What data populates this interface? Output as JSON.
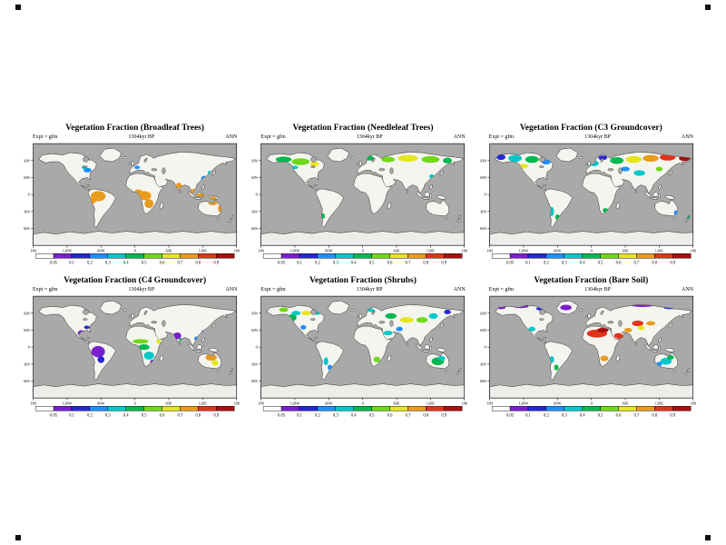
{
  "page": {
    "background": "#ffffff"
  },
  "map_colors": {
    "ocean": "#a9a9a9",
    "land": "#f5f5f0",
    "coast": "#000000",
    "antarctica": "#ededea"
  },
  "axes": {
    "x_tick_lons": [
      -180,
      -120,
      -60,
      0,
      60,
      120,
      180
    ],
    "x_tick_labels": [
      "180",
      "120W",
      "60W",
      "0",
      "60E",
      "120E",
      "180"
    ],
    "y_tick_lats": [
      60,
      30,
      0,
      -30,
      -60
    ],
    "y_tick_labels": [
      "60N",
      "30N",
      "0",
      "30S",
      "60S"
    ]
  },
  "colorbar": {
    "ticks": [
      "0.05",
      "0.1",
      "0.2",
      "0.3",
      "0.4",
      "0.5",
      "0.6",
      "0.7",
      "0.8",
      "0.9"
    ],
    "colors": [
      "#ffffff",
      "#7a1fd0",
      "#2626d8",
      "#1e90ff",
      "#00c8c8",
      "#00b850",
      "#70d818",
      "#e6e61e",
      "#e89c1e",
      "#e0341a",
      "#a80f0f"
    ]
  },
  "regions_format": [
    "lon",
    "lat",
    "rlon",
    "rlat",
    "value"
  ],
  "chart_data": [
    {
      "type": "heatmap",
      "projection": "equirectangular",
      "title": "Vegetation Fraction (Broadleaf Trees)",
      "expt_label": "Expt = gfm",
      "date_label": "1304kyr BP",
      "season_label": "ANN",
      "regions": [
        [
          -84,
          43,
          7,
          4,
          0.25
        ],
        [
          -90,
          48,
          4,
          3,
          0.35
        ],
        [
          -65,
          -3,
          13,
          9,
          0.75
        ],
        [
          -74,
          -10,
          5,
          6,
          0.75
        ],
        [
          16,
          -2,
          13,
          8,
          0.75
        ],
        [
          25,
          -16,
          8,
          8,
          0.75
        ],
        [
          6,
          6,
          6,
          3,
          0.75
        ],
        [
          78,
          16,
          5,
          5,
          0.75
        ],
        [
          105,
          5,
          8,
          5,
          0.75
        ],
        [
          115,
          -2,
          8,
          4,
          0.75
        ],
        [
          138,
          -6,
          6,
          3,
          0.75
        ],
        [
          138,
          -15,
          8,
          4,
          0.75
        ],
        [
          150,
          -25,
          3,
          6,
          0.75
        ],
        [
          122,
          28,
          5,
          5,
          0.25
        ],
        [
          4,
          48,
          5,
          3,
          0.25
        ],
        [
          132,
          38,
          3,
          4,
          0.35
        ]
      ]
    },
    {
      "type": "heatmap",
      "projection": "equirectangular",
      "title": "Vegetation Fraction (Needleleaf Trees)",
      "expt_label": "Expt = gfm",
      "date_label": "1304kyr BP",
      "season_label": "ANN",
      "regions": [
        [
          -140,
          62,
          14,
          5,
          0.45
        ],
        [
          -110,
          58,
          16,
          6,
          0.55
        ],
        [
          -85,
          54,
          8,
          4,
          0.65
        ],
        [
          -120,
          48,
          6,
          3,
          0.35
        ],
        [
          13,
          64,
          7,
          4,
          0.45
        ],
        [
          45,
          62,
          12,
          5,
          0.55
        ],
        [
          80,
          64,
          18,
          6,
          0.65
        ],
        [
          120,
          62,
          16,
          6,
          0.55
        ],
        [
          150,
          60,
          8,
          5,
          0.45
        ],
        [
          122,
          32,
          4,
          4,
          0.35
        ],
        [
          -70,
          -38,
          3,
          5,
          0.45
        ]
      ]
    },
    {
      "type": "heatmap",
      "projection": "equirectangular",
      "title": "Vegetation Fraction (C3 Groundcover)",
      "expt_label": "Expt = gfm",
      "date_label": "1304kyr BP",
      "season_label": "ANN",
      "regions": [
        [
          -160,
          66,
          8,
          5,
          0.15
        ],
        [
          -135,
          64,
          12,
          6,
          0.35
        ],
        [
          -105,
          62,
          12,
          6,
          0.45
        ],
        [
          -80,
          58,
          8,
          5,
          0.25
        ],
        [
          -120,
          50,
          8,
          4,
          0.65
        ],
        [
          5,
          55,
          8,
          5,
          0.35
        ],
        [
          20,
          65,
          8,
          4,
          0.15
        ],
        [
          45,
          60,
          12,
          6,
          0.45
        ],
        [
          75,
          62,
          14,
          6,
          0.65
        ],
        [
          105,
          64,
          14,
          6,
          0.75
        ],
        [
          135,
          66,
          14,
          6,
          0.85
        ],
        [
          165,
          64,
          10,
          5,
          0.95
        ],
        [
          85,
          38,
          10,
          5,
          0.35
        ],
        [
          60,
          45,
          8,
          4,
          0.25
        ],
        [
          120,
          45,
          6,
          4,
          0.55
        ],
        [
          -70,
          -30,
          4,
          8,
          0.35
        ],
        [
          -60,
          -40,
          4,
          5,
          0.45
        ],
        [
          25,
          -28,
          5,
          4,
          0.45
        ],
        [
          150,
          -32,
          4,
          4,
          0.25
        ],
        [
          172,
          -42,
          3,
          4,
          0.45
        ]
      ]
    },
    {
      "type": "heatmap",
      "projection": "equirectangular",
      "title": "Vegetation Fraction (C4 Groundcover)",
      "expt_label": "Expt = gfm",
      "date_label": "1304kyr BP",
      "season_label": "ANN",
      "regions": [
        [
          -65,
          -8,
          12,
          10,
          0.08
        ],
        [
          -60,
          -22,
          6,
          6,
          0.15
        ],
        [
          -95,
          25,
          6,
          5,
          0.08
        ],
        [
          -85,
          35,
          5,
          3,
          0.15
        ],
        [
          10,
          10,
          14,
          4,
          0.55
        ],
        [
          16,
          0,
          10,
          5,
          0.45
        ],
        [
          25,
          -15,
          9,
          7,
          0.35
        ],
        [
          32,
          -26,
          5,
          4,
          0.08
        ],
        [
          42,
          10,
          4,
          4,
          0.65
        ],
        [
          75,
          20,
          7,
          6,
          0.08
        ],
        [
          82,
          12,
          4,
          4,
          0.45
        ],
        [
          110,
          15,
          5,
          4,
          0.25
        ],
        [
          135,
          -18,
          10,
          6,
          0.75
        ],
        [
          142,
          -28,
          6,
          5,
          0.65
        ],
        [
          122,
          27,
          4,
          3,
          0.08
        ]
      ]
    },
    {
      "type": "heatmap",
      "projection": "equirectangular",
      "title": "Vegetation Fraction (Shrubs)",
      "expt_label": "Expt = gfm",
      "date_label": "1304kyr BP",
      "season_label": "ANN",
      "regions": [
        [
          -125,
          52,
          8,
          6,
          0.45
        ],
        [
          -118,
          60,
          8,
          4,
          0.35
        ],
        [
          -140,
          66,
          8,
          4,
          0.55
        ],
        [
          -100,
          60,
          8,
          4,
          0.65
        ],
        [
          -80,
          60,
          5,
          3,
          0.35
        ],
        [
          -105,
          35,
          5,
          4,
          0.25
        ],
        [
          15,
          65,
          6,
          3,
          0.35
        ],
        [
          50,
          55,
          10,
          5,
          0.45
        ],
        [
          78,
          48,
          12,
          5,
          0.65
        ],
        [
          105,
          48,
          10,
          5,
          0.55
        ],
        [
          125,
          55,
          8,
          5,
          0.35
        ],
        [
          150,
          62,
          6,
          4,
          0.15
        ],
        [
          45,
          25,
          8,
          4,
          0.35
        ],
        [
          65,
          32,
          6,
          4,
          0.25
        ],
        [
          133,
          -25,
          11,
          7,
          0.45
        ],
        [
          140,
          -20,
          6,
          4,
          0.35
        ],
        [
          -65,
          -25,
          4,
          7,
          0.35
        ],
        [
          -58,
          -36,
          4,
          5,
          0.25
        ],
        [
          25,
          -22,
          6,
          5,
          0.55
        ]
      ]
    },
    {
      "type": "heatmap",
      "projection": "equirectangular",
      "title": "Vegetation Fraction (Bare Soil)",
      "expt_label": "Expt = gfm",
      "date_label": "1304kyr BP",
      "season_label": "ANN",
      "regions": [
        [
          10,
          24,
          18,
          7,
          0.85
        ],
        [
          20,
          30,
          10,
          4,
          0.95
        ],
        [
          48,
          20,
          8,
          5,
          0.85
        ],
        [
          65,
          30,
          7,
          4,
          0.75
        ],
        [
          82,
          42,
          10,
          5,
          0.85
        ],
        [
          105,
          42,
          8,
          4,
          0.75
        ],
        [
          88,
          34,
          6,
          4,
          0.65
        ],
        [
          -160,
          70,
          8,
          3,
          0.08
        ],
        [
          -125,
          72,
          14,
          3,
          0.08
        ],
        [
          -90,
          68,
          8,
          3,
          0.15
        ],
        [
          -45,
          70,
          10,
          5,
          0.08
        ],
        [
          90,
          74,
          20,
          3,
          0.08
        ],
        [
          140,
          70,
          12,
          3,
          0.15
        ],
        [
          -105,
          32,
          6,
          4,
          0.35
        ],
        [
          -70,
          -22,
          4,
          6,
          0.35
        ],
        [
          -62,
          -36,
          4,
          5,
          0.45
        ],
        [
          23,
          -20,
          7,
          5,
          0.75
        ],
        [
          132,
          -25,
          10,
          6,
          0.35
        ],
        [
          140,
          -18,
          6,
          4,
          0.45
        ],
        [
          120,
          -30,
          5,
          4,
          0.25
        ]
      ]
    }
  ]
}
